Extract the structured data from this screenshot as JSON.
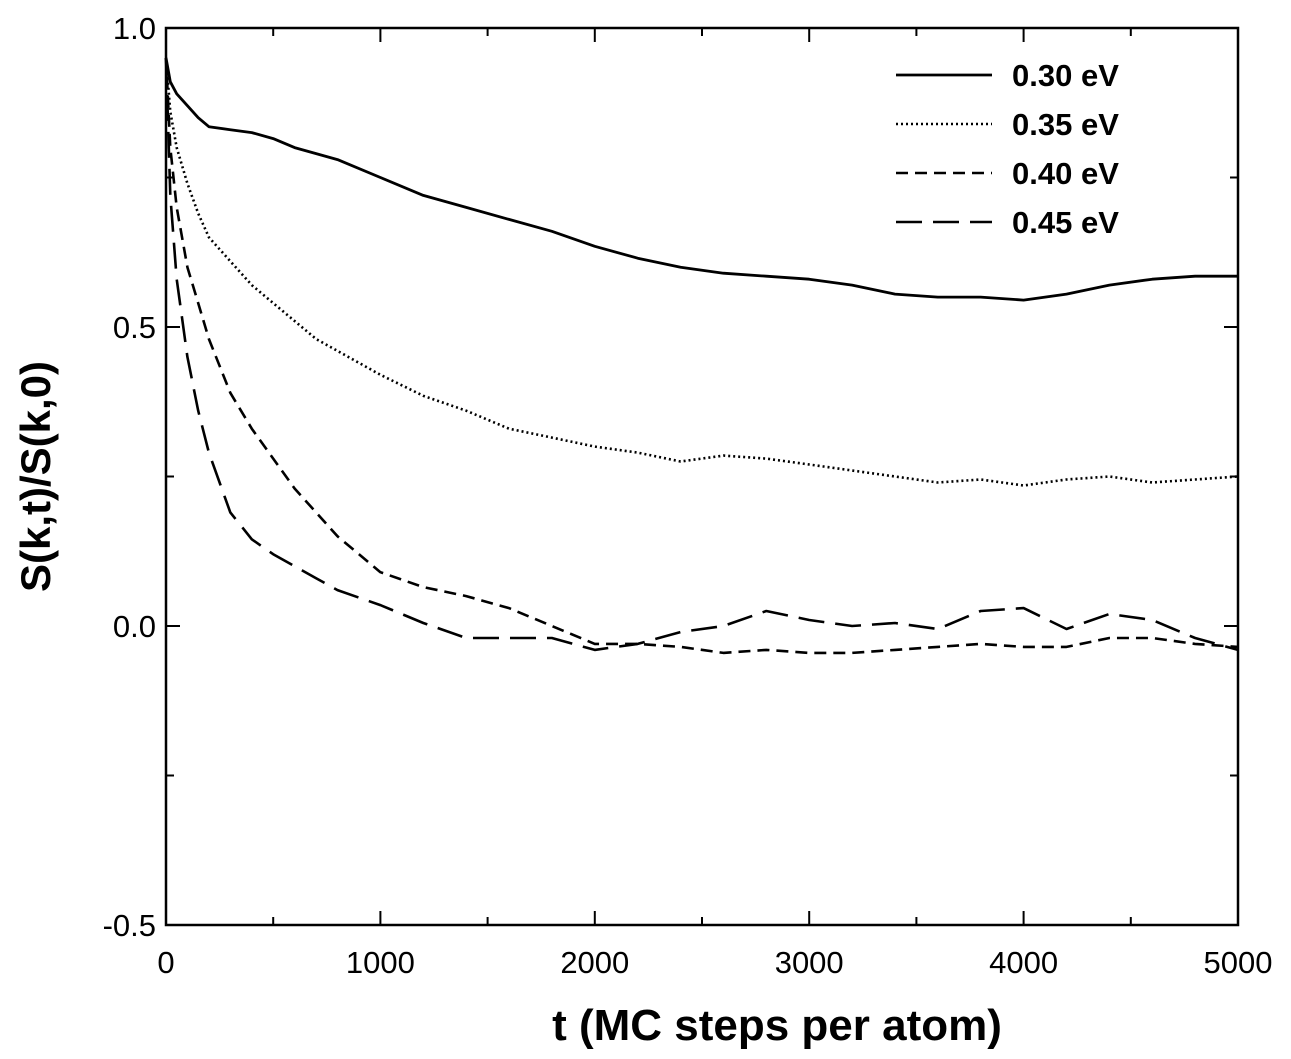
{
  "chart_data": {
    "type": "line",
    "title": "",
    "xlabel": "t (MC steps per atom)",
    "ylabel": "S(k,t)/S(k,0)",
    "xlim": [
      0,
      5000
    ],
    "ylim": [
      -0.5,
      1.0
    ],
    "xticks": [
      0,
      1000,
      2000,
      3000,
      4000,
      5000
    ],
    "xtick_labels": [
      "0",
      "1000",
      "2000",
      "3000",
      "4000",
      "5000"
    ],
    "yticks": [
      -0.5,
      0.0,
      0.5,
      1.0
    ],
    "ytick_labels": [
      "-0.5",
      "0.0",
      "0.5",
      "1.0"
    ],
    "grid": false,
    "legend_position": "top-right",
    "x": [
      0,
      20,
      50,
      100,
      150,
      200,
      300,
      400,
      500,
      600,
      700,
      800,
      1000,
      1200,
      1400,
      1600,
      1800,
      2000,
      2200,
      2400,
      2600,
      2800,
      3000,
      3200,
      3400,
      3600,
      3800,
      4000,
      4200,
      4400,
      4600,
      4800,
      5000
    ],
    "series": [
      {
        "name": "0.30 eV",
        "dash": "solid",
        "values": [
          0.95,
          0.91,
          0.89,
          0.87,
          0.85,
          0.835,
          0.83,
          0.825,
          0.815,
          0.8,
          0.79,
          0.78,
          0.75,
          0.72,
          0.7,
          0.68,
          0.66,
          0.635,
          0.615,
          0.6,
          0.59,
          0.585,
          0.58,
          0.57,
          0.555,
          0.55,
          0.55,
          0.545,
          0.555,
          0.57,
          0.58,
          0.585,
          0.585
        ]
      },
      {
        "name": "0.35 eV",
        "dash": "dotted",
        "values": [
          0.95,
          0.86,
          0.8,
          0.74,
          0.69,
          0.65,
          0.61,
          0.57,
          0.54,
          0.51,
          0.48,
          0.46,
          0.42,
          0.385,
          0.36,
          0.33,
          0.315,
          0.3,
          0.29,
          0.275,
          0.285,
          0.28,
          0.27,
          0.26,
          0.25,
          0.24,
          0.245,
          0.235,
          0.245,
          0.25,
          0.24,
          0.245,
          0.25
        ]
      },
      {
        "name": "0.40 eV",
        "dash": "short-dash",
        "values": [
          0.95,
          0.8,
          0.7,
          0.6,
          0.54,
          0.48,
          0.39,
          0.33,
          0.28,
          0.23,
          0.19,
          0.15,
          0.09,
          0.065,
          0.05,
          0.03,
          0.0,
          -0.03,
          -0.03,
          -0.035,
          -0.045,
          -0.04,
          -0.045,
          -0.045,
          -0.04,
          -0.035,
          -0.03,
          -0.035,
          -0.035,
          -0.02,
          -0.02,
          -0.03,
          -0.035
        ]
      },
      {
        "name": "0.45 eV",
        "dash": "long-dash",
        "values": [
          0.95,
          0.72,
          0.58,
          0.45,
          0.36,
          0.29,
          0.19,
          0.145,
          0.12,
          0.1,
          0.08,
          0.06,
          0.035,
          0.005,
          -0.02,
          -0.02,
          -0.02,
          -0.04,
          -0.03,
          -0.01,
          0.0,
          0.025,
          0.01,
          0.0,
          0.005,
          -0.005,
          0.025,
          0.03,
          -0.005,
          0.02,
          0.01,
          -0.02,
          -0.04
        ]
      }
    ]
  }
}
